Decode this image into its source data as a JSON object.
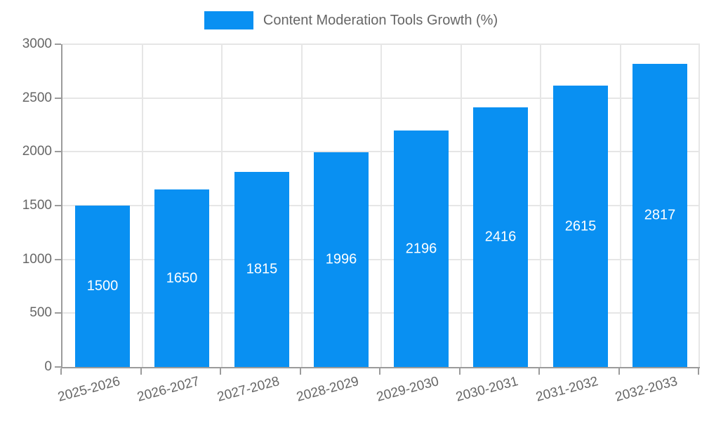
{
  "legend": {
    "label": "Content Moderation Tools Growth (%)"
  },
  "chart_data": {
    "type": "bar",
    "title": "Content Moderation Tools Growth (%)",
    "categories": [
      "2025-2026",
      "2026-2027",
      "2027-2028",
      "2028-2029",
      "2029-2030",
      "2030-2031",
      "2031-2032",
      "2032-2033"
    ],
    "values": [
      1500,
      1650,
      1815,
      1996,
      2196,
      2416,
      2615,
      2817
    ],
    "xlabel": "",
    "ylabel": "",
    "ylim": [
      0,
      3000
    ],
    "ytick_step": 500,
    "yticks": [
      0,
      500,
      1000,
      1500,
      2000,
      2500,
      3000
    ],
    "grid": true,
    "legend_position": "top",
    "bar_color": "#0990f2",
    "bar_value_label_color": "#ffffff",
    "axis_text_color": "#666666",
    "grid_color": "#e6e6e6",
    "axis_line_color": "#9b9b9b",
    "background_color": "#ffffff"
  }
}
